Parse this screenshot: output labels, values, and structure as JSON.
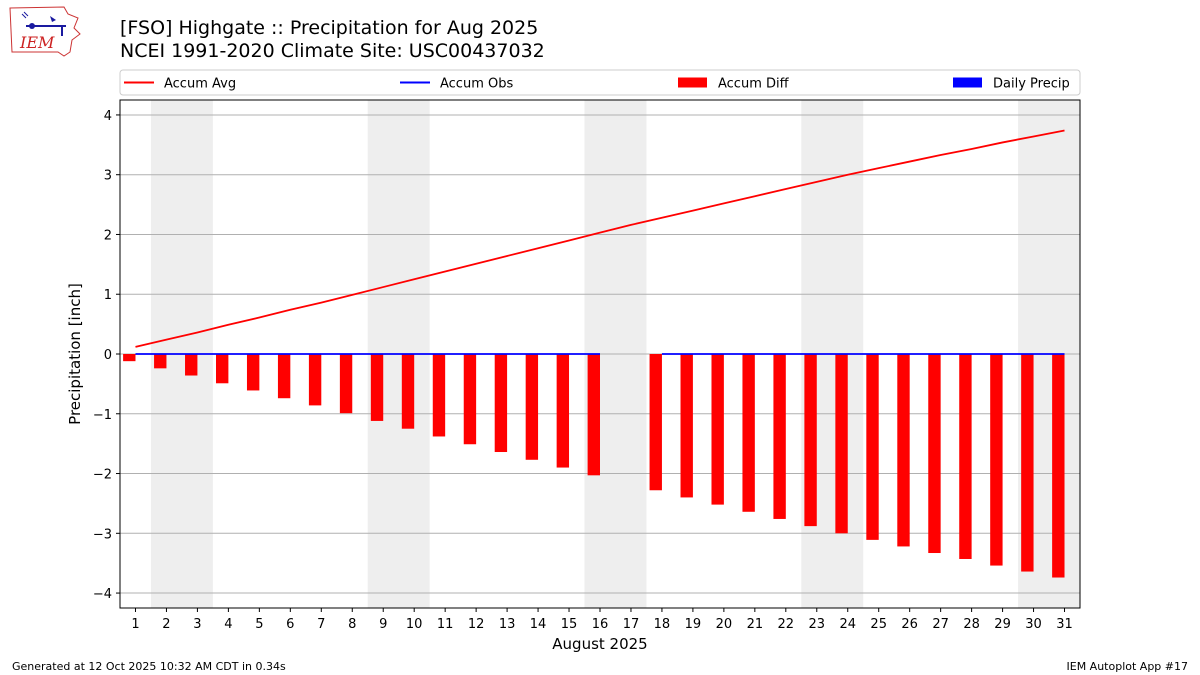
{
  "header": {
    "title": "[FSO] Highgate :: Precipitation for Aug 2025",
    "subtitle": "NCEI 1991-2020 Climate Site: USC00437032"
  },
  "logo": {
    "text": "IEM",
    "icon": "iem-iowa-logo-icon",
    "color": "#cc2222"
  },
  "footer": {
    "left": "Generated at 12 Oct 2025 10:32 AM CDT in 0.34s",
    "right": "IEM Autoplot App #17"
  },
  "colors": {
    "accum_avg": "#ff0000",
    "accum_obs": "#0000ff",
    "accum_diff": "#ff0000",
    "daily_precip": "#0000ff",
    "weekend_shade": "#eeeeee",
    "grid": "#b0b0b0"
  },
  "chart_data": {
    "type": "bar",
    "xlabel": "August 2025",
    "ylabel": "Precipitation [inch]",
    "xlim": [
      0.5,
      31.5
    ],
    "ylim": [
      -4.25,
      4.25
    ],
    "yticks": [
      -4,
      -3,
      -2,
      -1,
      0,
      1,
      2,
      3,
      4
    ],
    "ytick_labels": [
      "−4",
      "−3",
      "−2",
      "−1",
      "0",
      "1",
      "2",
      "3",
      "4"
    ],
    "grid": true,
    "legend": {
      "placement": "top",
      "entries": [
        {
          "label": "Accum Avg",
          "kind": "line",
          "color": "#ff0000"
        },
        {
          "label": "Accum Obs",
          "kind": "line",
          "color": "#0000ff"
        },
        {
          "label": "Accum Diff",
          "kind": "bar",
          "color": "#ff0000"
        },
        {
          "label": "Daily Precip",
          "kind": "bar",
          "color": "#0000ff"
        }
      ]
    },
    "shaded_days": [
      [
        2,
        3
      ],
      [
        9,
        10
      ],
      [
        16,
        17
      ],
      [
        23,
        24
      ],
      [
        30,
        31
      ]
    ],
    "days": [
      1,
      2,
      3,
      4,
      5,
      6,
      7,
      8,
      9,
      10,
      11,
      12,
      13,
      14,
      15,
      16,
      17,
      18,
      19,
      20,
      21,
      22,
      23,
      24,
      25,
      26,
      27,
      28,
      29,
      30,
      31
    ],
    "series": [
      {
        "name": "Accum Avg",
        "values": [
          0.12,
          0.24,
          0.36,
          0.49,
          0.61,
          0.74,
          0.86,
          0.99,
          1.12,
          1.25,
          1.38,
          1.51,
          1.64,
          1.77,
          1.9,
          2.03,
          2.16,
          2.28,
          2.4,
          2.52,
          2.64,
          2.76,
          2.88,
          3.0,
          3.11,
          3.22,
          3.33,
          3.43,
          3.54,
          3.64,
          3.74
        ]
      },
      {
        "name": "Accum Obs",
        "values": [
          0,
          0,
          0,
          0,
          0,
          0,
          0,
          0,
          0,
          0,
          0,
          0,
          0,
          0,
          0,
          0,
          null,
          0,
          0,
          0,
          0,
          0,
          0,
          0,
          0,
          0,
          0,
          0,
          0,
          0,
          0
        ]
      },
      {
        "name": "Accum Diff",
        "values": [
          -0.12,
          -0.24,
          -0.36,
          -0.49,
          -0.61,
          -0.74,
          -0.86,
          -0.99,
          -1.12,
          -1.25,
          -1.38,
          -1.51,
          -1.64,
          -1.77,
          -1.9,
          -2.03,
          null,
          -2.28,
          -2.4,
          -2.52,
          -2.64,
          -2.76,
          -2.88,
          -3.0,
          -3.11,
          -3.22,
          -3.33,
          -3.43,
          -3.54,
          -3.64,
          -3.74
        ]
      },
      {
        "name": "Daily Precip",
        "values": [
          0,
          0,
          0,
          0,
          0,
          0,
          0,
          0,
          0,
          0,
          0,
          0,
          0,
          0,
          0,
          0,
          null,
          0,
          0,
          0,
          0,
          0,
          0,
          0,
          0,
          0,
          0,
          0,
          0,
          0,
          0
        ]
      }
    ]
  }
}
